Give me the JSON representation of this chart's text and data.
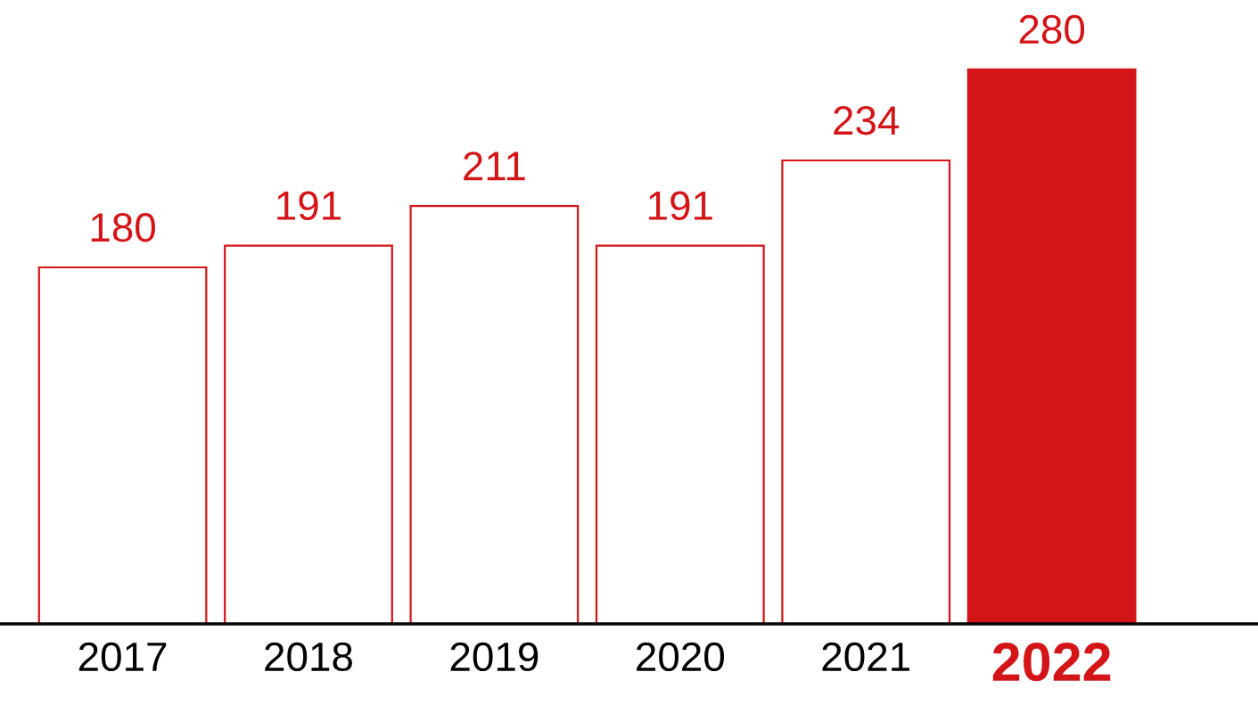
{
  "chart_data": {
    "type": "bar",
    "categories": [
      "2017",
      "2018",
      "2019",
      "2020",
      "2021",
      "2022"
    ],
    "series": [
      {
        "color": "#d41518",
        "colors": [
          "#ffffff",
          "#ffffff",
          "#ffffff",
          "#ffffff",
          "#ffffff",
          "#d41518"
        ],
        "values": [
          180,
          191,
          211,
          191,
          234,
          280
        ]
      }
    ],
    "data_labels": true,
    "tick_labels": "x"
  }
}
